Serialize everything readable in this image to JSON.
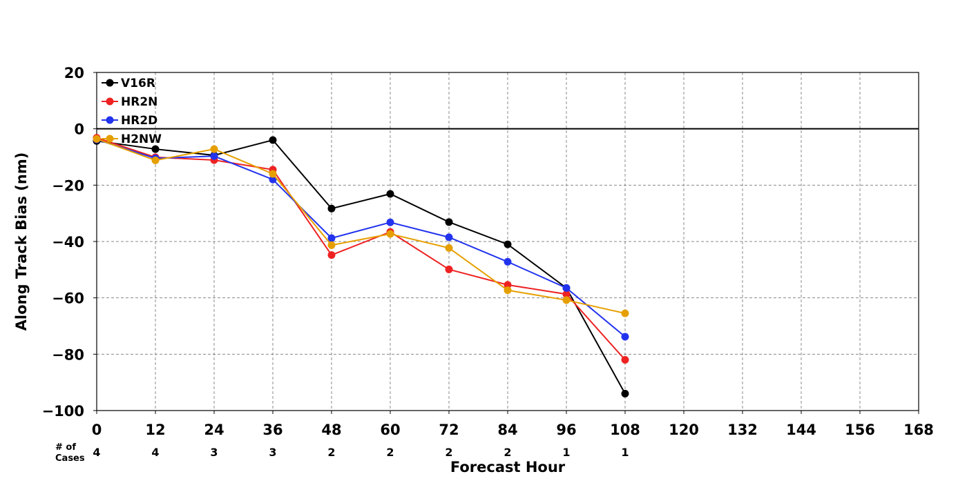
{
  "chart_data": {
    "type": "line",
    "xlabel": "Forecast Hour",
    "ylabel": "Along Track Bias (nm)",
    "xlim": [
      0,
      168
    ],
    "ylim": [
      -100,
      20
    ],
    "x_ticks": [
      "0",
      "12",
      "24",
      "36",
      "48",
      "60",
      "72",
      "84",
      "96",
      "108",
      "120",
      "132",
      "144",
      "156",
      "168"
    ],
    "y_ticks": [
      "20",
      "0",
      "−20",
      "−40",
      "−60",
      "−80",
      "−100"
    ],
    "grid": true,
    "legend_position": "top-left",
    "cases_label": [
      "# of",
      "Cases"
    ],
    "cases": [
      "4",
      "4",
      "3",
      "3",
      "2",
      "2",
      "2",
      "2",
      "1",
      "1"
    ],
    "x": [
      0,
      12,
      24,
      36,
      48,
      60,
      72,
      84,
      96,
      108
    ],
    "series": [
      {
        "name": "V16R",
        "color": "#000000",
        "values": [
          -4.3,
          -7.2,
          -9.4,
          -4.0,
          -28.3,
          -23.1,
          -33.1,
          -41.0,
          -56.5,
          -94.0
        ]
      },
      {
        "name": "HR2N",
        "color": "#ee2222",
        "values": [
          -3.2,
          -10.1,
          -11.1,
          -14.5,
          -44.8,
          -36.6,
          -49.9,
          -55.4,
          -58.7,
          -82.0
        ]
      },
      {
        "name": "HR2D",
        "color": "#2233ee",
        "values": [
          -3.8,
          -10.5,
          -9.7,
          -18.0,
          -38.8,
          -33.2,
          -38.5,
          -47.2,
          -56.5,
          -73.8
        ]
      },
      {
        "name": "H2NW",
        "color": "#e69f00",
        "values": [
          -3.6,
          -11.2,
          -7.2,
          -16.0,
          -41.3,
          -37.3,
          -42.3,
          -57.3,
          -60.8,
          -65.5
        ]
      }
    ]
  }
}
